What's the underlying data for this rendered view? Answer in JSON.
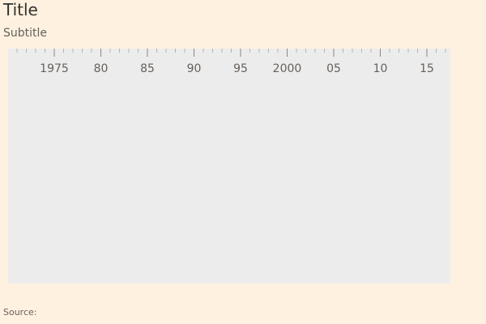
{
  "header": {
    "title": "Title",
    "subtitle": "Subtitle"
  },
  "footer": {
    "source": "Source:"
  },
  "colors": {
    "background": "#fff1e0",
    "plot_background": "#ececec",
    "tick": "#b3b3b3",
    "tick_label": "#66605c"
  },
  "chart_data": {
    "type": "line",
    "title": "Title",
    "subtitle": "Subtitle",
    "xlabel": "",
    "ylabel": "",
    "x_axis_position": "top",
    "xlim": [
      1971,
      2018
    ],
    "x_tick_labels": [
      {
        "year": 1975,
        "label": "1975"
      },
      {
        "year": 1980,
        "label": "80"
      },
      {
        "year": 1985,
        "label": "85"
      },
      {
        "year": 1990,
        "label": "90"
      },
      {
        "year": 1995,
        "label": "95"
      },
      {
        "year": 2000,
        "label": "2000"
      },
      {
        "year": 2005,
        "label": "05"
      },
      {
        "year": 2010,
        "label": "10"
      },
      {
        "year": 2015,
        "label": "15"
      }
    ],
    "minor_tick_step": 1,
    "series": [],
    "grid": false,
    "legend": "none"
  }
}
